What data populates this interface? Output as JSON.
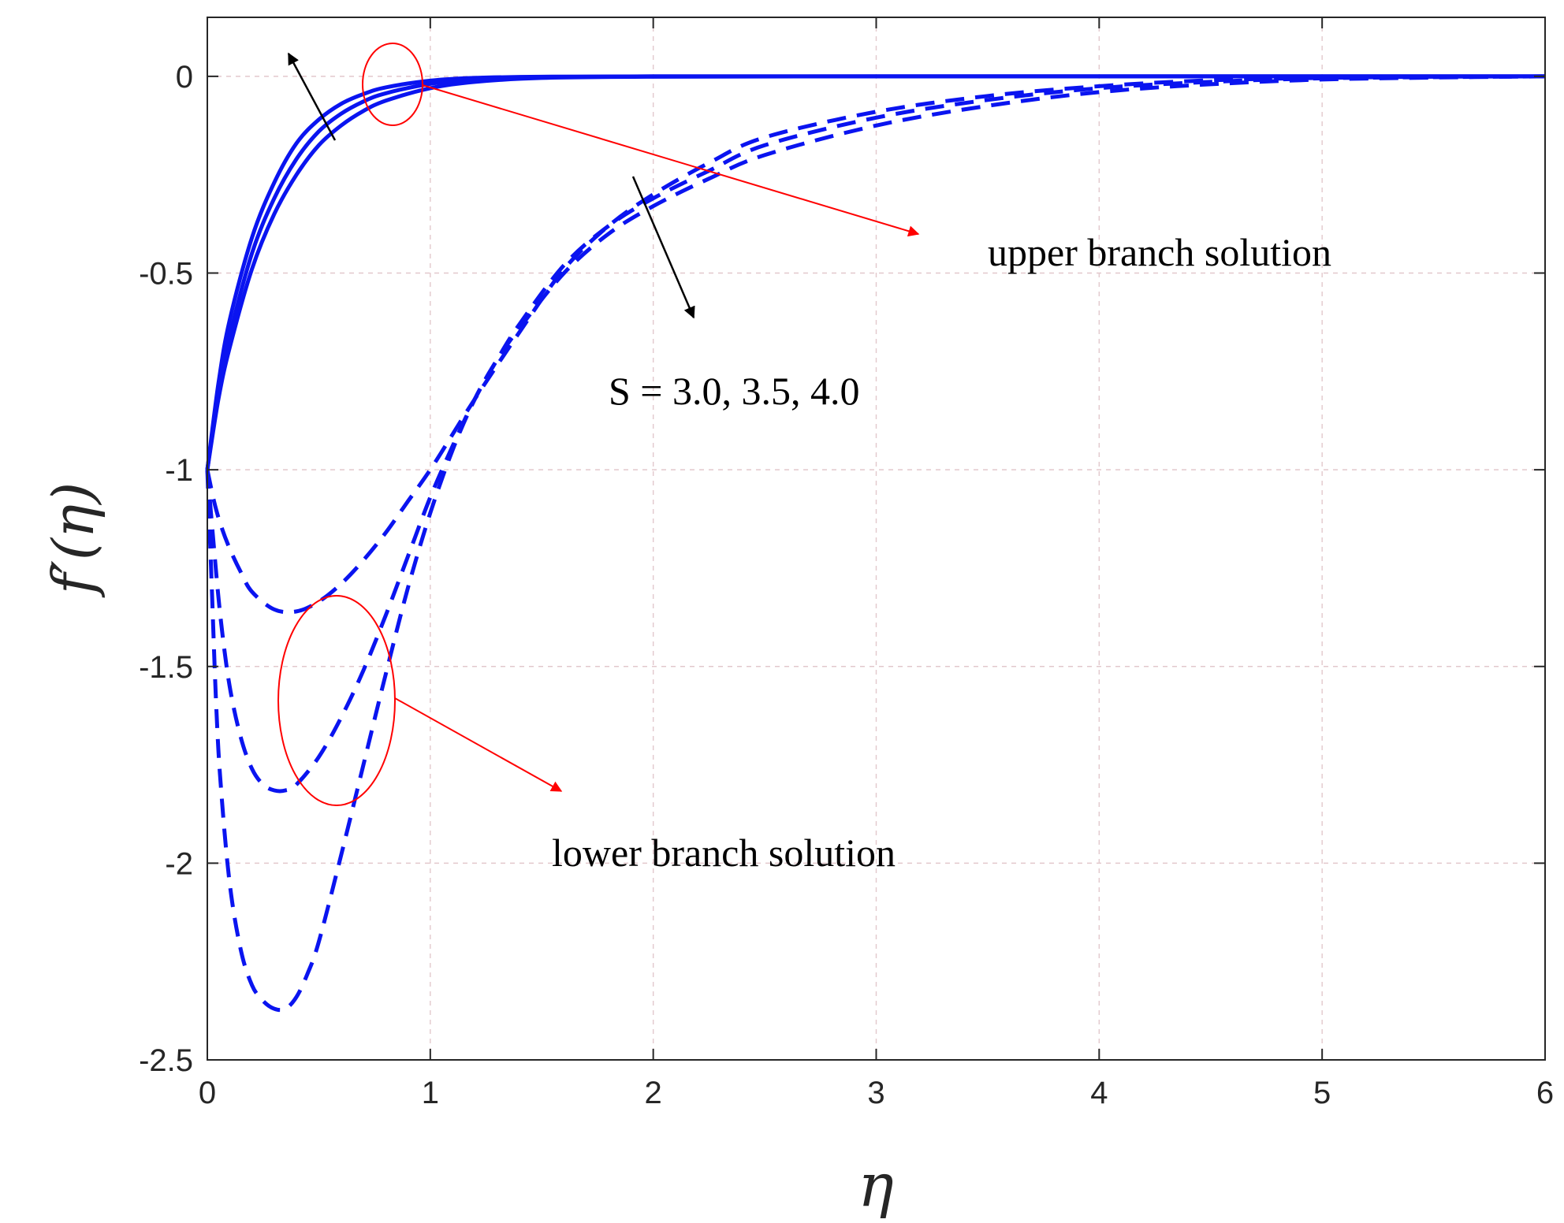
{
  "chart_data": {
    "type": "line",
    "title": "",
    "xlabel": "η",
    "ylabel": "f′(η)",
    "xlim": [
      0,
      6
    ],
    "ylim": [
      -2.5,
      0.15
    ],
    "xticks": [
      "0",
      "1",
      "2",
      "3",
      "4",
      "5",
      "6"
    ],
    "yticks": [
      "0",
      "-0.5",
      "-1",
      "-1.5",
      "-2",
      "-2.5"
    ],
    "grid": true,
    "legend": "none",
    "line_color": "#0a14f0",
    "annotation_color": "#ff0000",
    "series": [
      {
        "style": "solid",
        "x": [
          0,
          0.05,
          0.1,
          0.2,
          0.3,
          0.4,
          0.5,
          0.6,
          0.7,
          0.8,
          1.0,
          1.2,
          1.5,
          2.0,
          3.0,
          4.0,
          5.0,
          6.0
        ],
        "y": [
          -1.0,
          -0.78,
          -0.62,
          -0.41,
          -0.27,
          -0.17,
          -0.11,
          -0.07,
          -0.045,
          -0.028,
          -0.011,
          -0.004,
          -0.001,
          0,
          0,
          0,
          0,
          0
        ]
      },
      {
        "style": "solid",
        "x": [
          0,
          0.05,
          0.1,
          0.2,
          0.3,
          0.4,
          0.5,
          0.6,
          0.7,
          0.8,
          1.0,
          1.2,
          1.5,
          2.0,
          3.0,
          4.0,
          5.0,
          6.0
        ],
        "y": [
          -1.0,
          -0.8,
          -0.66,
          -0.45,
          -0.31,
          -0.21,
          -0.14,
          -0.095,
          -0.064,
          -0.043,
          -0.019,
          -0.008,
          -0.002,
          0,
          0,
          0,
          0,
          0
        ]
      },
      {
        "style": "solid",
        "x": [
          0,
          0.05,
          0.1,
          0.2,
          0.3,
          0.4,
          0.5,
          0.6,
          0.7,
          0.8,
          1.0,
          1.2,
          1.5,
          2.0,
          3.0,
          4.0,
          5.0,
          6.0
        ],
        "y": [
          -1.0,
          -0.82,
          -0.69,
          -0.49,
          -0.35,
          -0.25,
          -0.175,
          -0.125,
          -0.088,
          -0.062,
          -0.03,
          -0.014,
          -0.004,
          -0.001,
          0,
          0,
          0,
          0
        ]
      },
      {
        "style": "dashed",
        "x": [
          0,
          0.03,
          0.06,
          0.1,
          0.15,
          0.2,
          0.3,
          0.4,
          0.5,
          0.6,
          0.7,
          0.8,
          0.9,
          1.0,
          1.1,
          1.2,
          1.4,
          1.6,
          1.8,
          2.0,
          2.25,
          2.5,
          3.0,
          3.5,
          4.0,
          4.5,
          5.0,
          5.5,
          6.0
        ],
        "y": [
          -1.0,
          -1.08,
          -1.14,
          -1.2,
          -1.26,
          -1.31,
          -1.355,
          -1.36,
          -1.335,
          -1.29,
          -1.23,
          -1.16,
          -1.08,
          -1.0,
          -0.91,
          -0.82,
          -0.65,
          -0.49,
          -0.38,
          -0.3,
          -0.22,
          -0.155,
          -0.09,
          -0.05,
          -0.025,
          -0.01,
          -0.004,
          -0.001,
          0
        ]
      },
      {
        "style": "dashed",
        "x": [
          0,
          0.03,
          0.06,
          0.1,
          0.15,
          0.2,
          0.25,
          0.3,
          0.35,
          0.4,
          0.5,
          0.6,
          0.7,
          0.8,
          0.9,
          1.0,
          1.1,
          1.2,
          1.3,
          1.4,
          1.6,
          1.8,
          2.0,
          2.25,
          2.5,
          3.0,
          3.5,
          4.0,
          4.5,
          5.0,
          5.5,
          6.0
        ],
        "y": [
          -1.0,
          -1.2,
          -1.38,
          -1.55,
          -1.68,
          -1.76,
          -1.8,
          -1.815,
          -1.815,
          -1.8,
          -1.73,
          -1.63,
          -1.51,
          -1.37,
          -1.22,
          -1.07,
          -0.94,
          -0.82,
          -0.72,
          -0.63,
          -0.48,
          -0.38,
          -0.31,
          -0.24,
          -0.175,
          -0.105,
          -0.06,
          -0.03,
          -0.014,
          -0.005,
          -0.002,
          0
        ]
      },
      {
        "style": "dashed",
        "x": [
          0,
          0.02,
          0.04,
          0.06,
          0.1,
          0.15,
          0.2,
          0.25,
          0.3,
          0.35,
          0.4,
          0.45,
          0.5,
          0.6,
          0.7,
          0.8,
          0.9,
          1.0,
          1.1,
          1.2,
          1.3,
          1.4,
          1.6,
          1.8,
          2.0,
          2.25,
          2.5,
          3.0,
          3.5,
          4.0,
          4.5,
          5.0,
          5.5,
          6.0
        ],
        "y": [
          -1.0,
          -1.3,
          -1.6,
          -1.8,
          -2.05,
          -2.22,
          -2.31,
          -2.35,
          -2.37,
          -2.37,
          -2.34,
          -2.28,
          -2.2,
          -1.98,
          -1.75,
          -1.52,
          -1.3,
          -1.11,
          -0.95,
          -0.82,
          -0.72,
          -0.64,
          -0.5,
          -0.4,
          -0.33,
          -0.26,
          -0.2,
          -0.125,
          -0.075,
          -0.04,
          -0.02,
          -0.008,
          -0.003,
          0
        ]
      }
    ],
    "annotations": {
      "upper_label": "upper branch solution",
      "param_label": "S = 3.0, 3.5, 4.0",
      "lower_label": "lower branch solution"
    }
  }
}
